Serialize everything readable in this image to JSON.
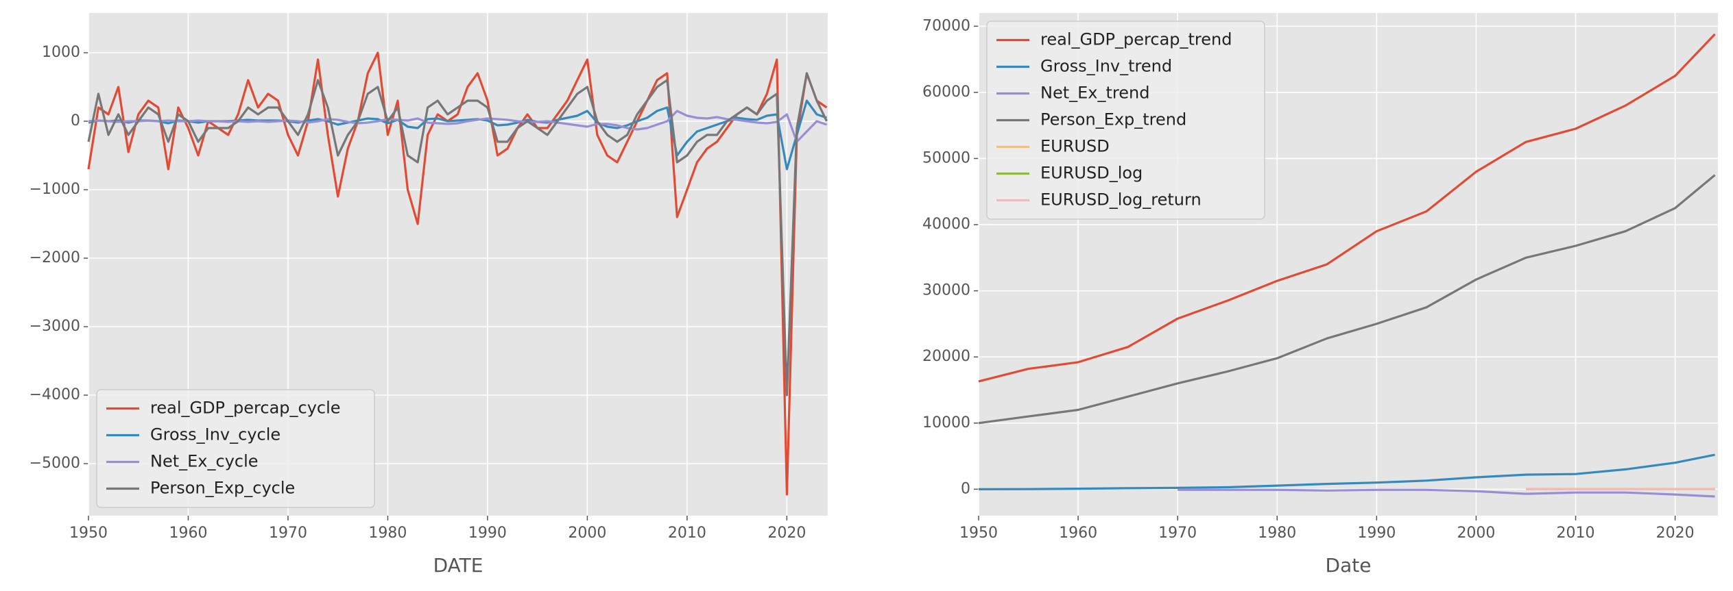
{
  "chart_data": [
    {
      "type": "line",
      "xlabel": "DATE",
      "legend": "lower left",
      "grid": true,
      "xlim": [
        1950,
        2024.1
      ],
      "xticks": [
        1950,
        1960,
        1970,
        1980,
        1990,
        2000,
        2010,
        2020
      ],
      "ylim": [
        -5760,
        1580
      ],
      "yticks": [
        {
          "value": -5000,
          "label": "−5000"
        },
        {
          "value": -4000,
          "label": "−4000"
        },
        {
          "value": -3000,
          "label": "−3000"
        },
        {
          "value": -2000,
          "label": "−2000"
        },
        {
          "value": -1000,
          "label": "−1000"
        },
        0,
        1000
      ],
      "x": [
        1950,
        1951,
        1952,
        1953,
        1954,
        1955,
        1956,
        1957,
        1958,
        1959,
        1960,
        1961,
        1962,
        1963,
        1964,
        1965,
        1966,
        1967,
        1968,
        1969,
        1970,
        1971,
        1972,
        1973,
        1974,
        1975,
        1976,
        1977,
        1978,
        1979,
        1980,
        1981,
        1982,
        1983,
        1984,
        1985,
        1986,
        1987,
        1988,
        1989,
        1990,
        1991,
        1992,
        1993,
        1994,
        1995,
        1996,
        1997,
        1998,
        1999,
        2000,
        2001,
        2002,
        2003,
        2004,
        2005,
        2006,
        2007,
        2008,
        2009,
        2010,
        2011,
        2012,
        2013,
        2014,
        2015,
        2016,
        2017,
        2018,
        2019,
        2020,
        2021,
        2022,
        2023,
        2024
      ],
      "series": [
        {
          "name": "real_GDP_percap_cycle",
          "color": "#E24A33",
          "values": [
            -700,
            200,
            100,
            500,
            -450,
            100,
            300,
            200,
            -700,
            200,
            -100,
            -500,
            0,
            -100,
            -200,
            100,
            600,
            200,
            400,
            300,
            -200,
            -500,
            0,
            900,
            -200,
            -1100,
            -400,
            0,
            700,
            1000,
            -200,
            300,
            -1000,
            -1500,
            -200,
            100,
            0,
            100,
            500,
            700,
            300,
            -500,
            -400,
            -100,
            100,
            -100,
            -100,
            100,
            300,
            600,
            900,
            -200,
            -500,
            -600,
            -300,
            0,
            300,
            600,
            700,
            -1400,
            -1000,
            -600,
            -400,
            -300,
            -100,
            100,
            200,
            100,
            400,
            900,
            -5450,
            -200,
            700,
            300,
            200
          ]
        },
        {
          "name": "Gross_Inv_cycle",
          "color": "#348ABD",
          "values": [
            -20,
            10,
            0,
            10,
            -20,
            10,
            10,
            0,
            -30,
            10,
            0,
            -20,
            0,
            0,
            0,
            10,
            20,
            10,
            10,
            10,
            0,
            -20,
            10,
            30,
            0,
            -50,
            -20,
            10,
            40,
            30,
            -30,
            20,
            -80,
            -100,
            30,
            40,
            0,
            10,
            20,
            30,
            10,
            -60,
            -50,
            -20,
            20,
            -10,
            -20,
            20,
            50,
            80,
            150,
            -20,
            -80,
            -100,
            -60,
            0,
            50,
            150,
            200,
            -500,
            -300,
            -150,
            -100,
            -50,
            0,
            50,
            30,
            20,
            80,
            100,
            -700,
            -200,
            300,
            100,
            50
          ]
        },
        {
          "name": "Net_Ex_cycle",
          "color": "#988ED5",
          "values": [
            0,
            10,
            0,
            -10,
            0,
            0,
            10,
            0,
            10,
            0,
            0,
            10,
            0,
            0,
            -10,
            0,
            -10,
            0,
            -10,
            0,
            10,
            0,
            -20,
            0,
            30,
            20,
            -10,
            -30,
            -20,
            0,
            30,
            20,
            10,
            40,
            -20,
            -30,
            -40,
            -30,
            0,
            20,
            40,
            30,
            20,
            0,
            -10,
            -10,
            0,
            -20,
            -40,
            -60,
            -80,
            -40,
            -40,
            -60,
            -100,
            -120,
            -100,
            -50,
            0,
            150,
            80,
            50,
            40,
            60,
            30,
            20,
            0,
            -20,
            -30,
            -10,
            100,
            -300,
            -150,
            0,
            -50
          ]
        },
        {
          "name": "Person_Exp_cycle",
          "color": "#777777",
          "values": [
            -300,
            400,
            -200,
            100,
            -200,
            0,
            200,
            100,
            -300,
            100,
            0,
            -300,
            -100,
            -100,
            -100,
            0,
            200,
            100,
            200,
            200,
            0,
            -200,
            100,
            600,
            200,
            -500,
            -200,
            0,
            400,
            500,
            0,
            200,
            -500,
            -600,
            200,
            300,
            100,
            200,
            300,
            300,
            200,
            -300,
            -300,
            -100,
            0,
            -100,
            -200,
            0,
            200,
            400,
            500,
            0,
            -200,
            -300,
            -200,
            100,
            300,
            500,
            600,
            -600,
            -500,
            -300,
            -200,
            -200,
            0,
            100,
            200,
            100,
            300,
            400,
            -4000,
            -100,
            700,
            300,
            0
          ]
        }
      ]
    },
    {
      "type": "line",
      "xlabel": "Date",
      "legend": "upper left",
      "grid": true,
      "xlim": [
        1950,
        2024.3
      ],
      "xticks": [
        1950,
        1960,
        1970,
        1980,
        1990,
        2000,
        2010,
        2020
      ],
      "ylim": [
        -4000,
        72000
      ],
      "yticks": [
        0,
        10000,
        20000,
        30000,
        40000,
        50000,
        60000,
        70000
      ],
      "x": [
        1950,
        1955,
        1960,
        1965,
        1970,
        1975,
        1980,
        1985,
        1990,
        1995,
        2000,
        2005,
        2010,
        2015,
        2020,
        2024
      ],
      "series": [
        {
          "name": "real_GDP_percap_trend",
          "color": "#E24A33",
          "values": [
            16300,
            18200,
            19200,
            21500,
            25800,
            28500,
            31500,
            34000,
            39000,
            42000,
            48000,
            52500,
            54500,
            58000,
            62500,
            68800
          ]
        },
        {
          "name": "Gross_Inv_trend",
          "color": "#348ABD",
          "values": [
            0,
            20,
            80,
            150,
            200,
            300,
            550,
            800,
            1000,
            1300,
            1800,
            2200,
            2300,
            3000,
            4000,
            5200
          ]
        },
        {
          "name": "Net_Ex_trend",
          "color": "#988ED5",
          "values": [
            null,
            null,
            null,
            null,
            -100,
            -100,
            -100,
            -200,
            -100,
            -100,
            -300,
            -700,
            -500,
            -500,
            -800,
            -1100
          ]
        },
        {
          "name": "Person_Exp_trend",
          "color": "#777777",
          "values": [
            10000,
            11000,
            12000,
            14000,
            16000,
            17800,
            19800,
            22800,
            25000,
            27500,
            31700,
            35000,
            36800,
            39000,
            42500,
            47500
          ]
        },
        {
          "name": "EURUSD",
          "color": "#FBC15E",
          "values": [
            null,
            null,
            null,
            null,
            null,
            null,
            null,
            null,
            null,
            null,
            null,
            1.2,
            1.3,
            1.1,
            1.1,
            1.1
          ]
        },
        {
          "name": "EURUSD_log",
          "color": "#8EBA42",
          "values": [
            null,
            null,
            null,
            null,
            null,
            null,
            null,
            null,
            null,
            null,
            null,
            0.2,
            0.25,
            0.1,
            0.1,
            0.08
          ]
        },
        {
          "name": "EURUSD_log_return",
          "color": "#FFB5B8",
          "values": [
            null,
            null,
            null,
            null,
            null,
            null,
            null,
            null,
            null,
            null,
            null,
            0,
            0,
            0,
            0,
            0
          ]
        }
      ]
    }
  ]
}
